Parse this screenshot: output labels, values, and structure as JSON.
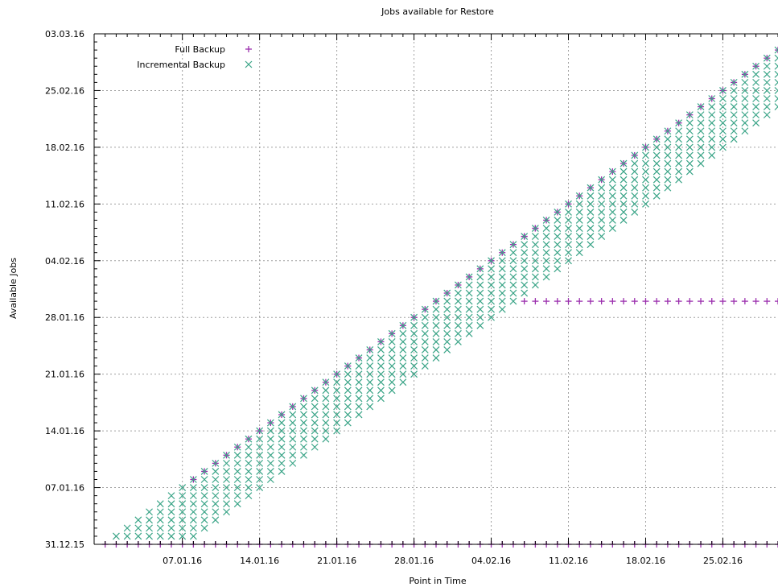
{
  "chart_data": {
    "type": "scatter",
    "title": "Jobs available for Restore",
    "xlabel": "Point in Time",
    "ylabel": "Available Jobs",
    "x_axis_type": "date",
    "y_axis_type": "date",
    "xlim": [
      "30.12.15",
      "01.03.16"
    ],
    "ylim": [
      "31.12.15",
      "03.03.16"
    ],
    "x_ticks": [
      "07.01.16",
      "14.01.16",
      "21.01.16",
      "28.01.16",
      "04.02.16",
      "11.02.16",
      "18.02.16",
      "25.02.16"
    ],
    "y_ticks": [
      "31.12.15",
      "07.01.16",
      "14.01.16",
      "21.01.16",
      "28.01.16",
      "04.02.16",
      "11.02.16",
      "18.02.16",
      "25.02.16",
      "03.03.16"
    ],
    "grid": true,
    "legend_position": "top-left",
    "series": [
      {
        "name": "Full Backup",
        "marker": "plus",
        "color": "#9b2fae",
        "description": "Daily points from 31.12.15 to 01.03.16 at y=31.12.15 (the initial full backup); additionally y=x for each x from 08.01.16 to 08.02.16; then y=30.01.16 for x from 07.02.16 to 01.03.16; then y=x for x from 07.02.16 to 01.03.16.",
        "segments": [
          {
            "x_from": "31.12.15",
            "x_to": "01.03.16",
            "y": "31.12.15"
          },
          {
            "x_from": "08.01.16",
            "x_to": "08.02.16",
            "y": "same as x"
          },
          {
            "x_from": "07.02.16",
            "x_to": "01.03.16",
            "y": "30.01.16"
          },
          {
            "x_from": "07.02.16",
            "x_to": "01.03.16",
            "y": "same as x"
          }
        ]
      },
      {
        "name": "Incremental Backup",
        "marker": "x",
        "color": "#3aa487",
        "description": "For each day x from 01.01.16 to 01.03.16, incremental backups cover the range of days from the most recent full backup (one week earlier, minimum 01.01.16) up to x.",
        "window_days": 8,
        "x_from": "01.01.16",
        "x_to": "01.03.16",
        "y_min": "01.01.16"
      }
    ],
    "colors": {
      "full": "#9b2fae",
      "incremental": "#3aa487",
      "grid": "#a0a0a0",
      "axis": "#000000"
    }
  }
}
